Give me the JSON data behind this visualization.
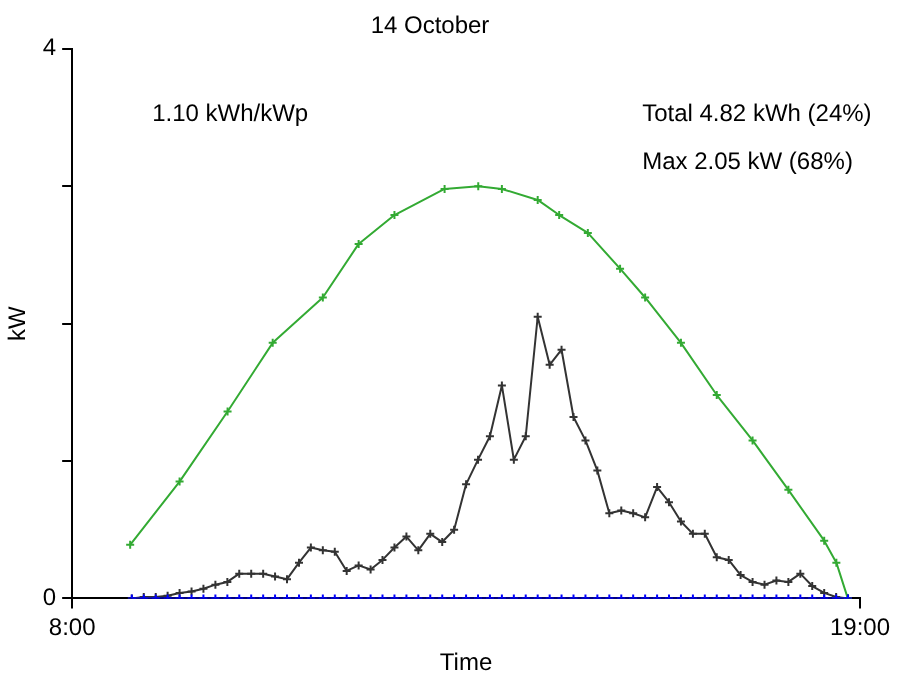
{
  "chart_data": {
    "type": "line",
    "title": "14 October",
    "xlabel": "Time",
    "ylabel": "kW",
    "annotations": [
      "1.10 kWh/kWp",
      "Total 4.82 kWh (24%)",
      "Max 2.05 kW (68%)"
    ],
    "x": [
      8.833,
      9,
      9.167,
      9.333,
      9.5,
      9.667,
      9.833,
      10,
      10.167,
      10.333,
      10.5,
      10.667,
      10.833,
      11,
      11.167,
      11.333,
      11.5,
      11.667,
      11.833,
      12,
      12.167,
      12.333,
      12.5,
      12.667,
      12.833,
      13,
      13.167,
      13.333,
      13.5,
      13.667,
      13.833,
      14,
      14.167,
      14.333,
      14.5,
      14.667,
      14.833,
      15,
      15.167,
      15.333,
      15.5,
      15.667,
      15.833,
      16,
      16.167,
      16.333,
      16.5,
      16.667,
      16.833,
      17,
      17.167,
      17.333,
      17.5,
      17.667,
      17.833,
      18,
      18.167,
      18.333,
      18.5,
      18.667,
      18.833
    ],
    "series": [
      {
        "color": "#33aa33",
        "x": [
          8.81,
          9.5,
          10.17,
          10.8,
          11.5,
          12,
          12.5,
          13.2,
          13.67,
          14,
          14.5,
          14.8,
          15.2,
          15.65,
          16,
          16.5,
          17,
          17.5,
          18,
          18.5,
          18.67,
          18.83
        ],
        "values": [
          0.39,
          0.85,
          1.36,
          1.86,
          2.19,
          2.58,
          2.79,
          2.98,
          3.0,
          2.98,
          2.9,
          2.79,
          2.66,
          2.4,
          2.19,
          1.86,
          1.48,
          1.15,
          0.79,
          0.42,
          0.26,
          0
        ]
      },
      {
        "color": "#333333",
        "values": [
          0,
          0.01,
          0.01,
          0.02,
          0.04,
          0.05,
          0.07,
          0.1,
          0.12,
          0.18,
          0.18,
          0.18,
          0.16,
          0.14,
          0.26,
          0.37,
          0.35,
          0.34,
          0.2,
          0.24,
          0.21,
          0.28,
          0.37,
          0.45,
          0.35,
          0.47,
          0.41,
          0.5,
          0.83,
          1.01,
          1.18,
          1.55,
          1.01,
          1.18,
          2.05,
          1.7,
          1.81,
          1.32,
          1.15,
          0.93,
          0.62,
          0.64,
          0.62,
          0.59,
          0.81,
          0.7,
          0.56,
          0.47,
          0.47,
          0.3,
          0.28,
          0.17,
          0.12,
          0.1,
          0.13,
          0.12,
          0.18,
          0.09,
          0.04,
          0.01,
          0
        ]
      },
      {
        "color": "#0000ff",
        "values": [
          0,
          0,
          0,
          0,
          0,
          0,
          0,
          0,
          0,
          0,
          0,
          0,
          0,
          0,
          0,
          0,
          0,
          0,
          0,
          0,
          0,
          0,
          0,
          0,
          0,
          0,
          0,
          0,
          0,
          0,
          0,
          0,
          0,
          0,
          0,
          0,
          0,
          0,
          0,
          0,
          0,
          0,
          0,
          0,
          0,
          0,
          0,
          0,
          0,
          0,
          0,
          0,
          0,
          0,
          0,
          0,
          0,
          0,
          0,
          0,
          0
        ]
      }
    ],
    "xlim": [
      8,
      19
    ],
    "xticks": [
      {
        "value": 8,
        "label": "8:00"
      },
      {
        "value": 19,
        "label": "19:00"
      }
    ],
    "ylim": [
      0,
      4
    ],
    "yticks": [
      0,
      {
        "value": 1,
        "label": null
      },
      {
        "value": 2,
        "label": null
      },
      {
        "value": 3,
        "label": null
      },
      4
    ],
    "grid": false,
    "legend": false,
    "marker": "cross",
    "line_style": "solid"
  }
}
